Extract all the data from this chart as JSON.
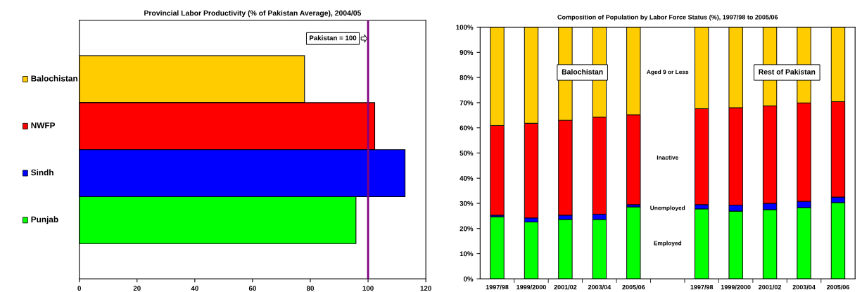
{
  "chart_data": [
    {
      "type": "bar",
      "orientation": "horizontal",
      "title": "Provincial Labor Productivity (% of Pakistan Average), 2004/05",
      "categories": [
        "Balochistan",
        "NWFP",
        "Sindh",
        "Punjab"
      ],
      "values": [
        78,
        102.3,
        112.8,
        95.8
      ],
      "colors": [
        "#ffcc00",
        "#ff0000",
        "#0000ff",
        "#00ff00"
      ],
      "xlim": [
        0,
        120
      ],
      "xticks": [
        0,
        20,
        40,
        60,
        80,
        100,
        120
      ],
      "grid": false,
      "legend": false,
      "ref_lines": [
        {
          "axis": "x",
          "value": 100,
          "label": "Pakistan = 100",
          "color": "#800080"
        }
      ]
    },
    {
      "type": "bar",
      "stacked": true,
      "title": "Composition of Population by Labor Force Status (%), 1997/98 to 2005/06",
      "categories": [
        "1997/98",
        "1999/2000",
        "2001/02",
        "2003/04",
        "2005/06",
        null,
        "1997/98",
        "1999/2000",
        "2001/02",
        "2003/04",
        "2005/06"
      ],
      "series": [
        {
          "name": "Employed",
          "color": "#00ff00",
          "values": [
            24.7,
            22.6,
            23.6,
            23.6,
            28.6,
            null,
            27.8,
            26.9,
            27.5,
            28.3,
            30.3
          ]
        },
        {
          "name": "Unemployed",
          "color": "#0000ff",
          "values": [
            0.6,
            1.6,
            1.7,
            2.1,
            0.9,
            null,
            1.7,
            2.4,
            2.5,
            2.5,
            2.2
          ]
        },
        {
          "name": "Inactive",
          "color": "#ff0000",
          "values": [
            35.6,
            37.6,
            37.7,
            38.6,
            35.7,
            null,
            38.1,
            38.7,
            38.7,
            39.1,
            37.9
          ]
        },
        {
          "name": "Aged 9 or Less",
          "color": "#ffcc00",
          "values": [
            39.1,
            38.2,
            37.0,
            35.7,
            34.8,
            null,
            32.4,
            32.0,
            31.3,
            30.1,
            29.6
          ]
        }
      ],
      "ylim": [
        0,
        100
      ],
      "yticks": [
        {
          "value": 0,
          "label": "0%"
        },
        {
          "value": 10,
          "label": "10%"
        },
        {
          "value": 20,
          "label": "20%"
        },
        {
          "value": 30,
          "label": "30%"
        },
        {
          "value": 40,
          "label": "40%"
        },
        {
          "value": 50,
          "label": "50%"
        },
        {
          "value": 60,
          "label": "60%"
        },
        {
          "value": 70,
          "label": "70%"
        },
        {
          "value": 80,
          "label": "80%"
        },
        {
          "value": 90,
          "label": "90%"
        },
        {
          "value": 100,
          "label": "100%"
        }
      ],
      "grid": false,
      "legend": false,
      "annotations": [
        "Balochistan",
        "Rest of Pakistan"
      ]
    }
  ]
}
